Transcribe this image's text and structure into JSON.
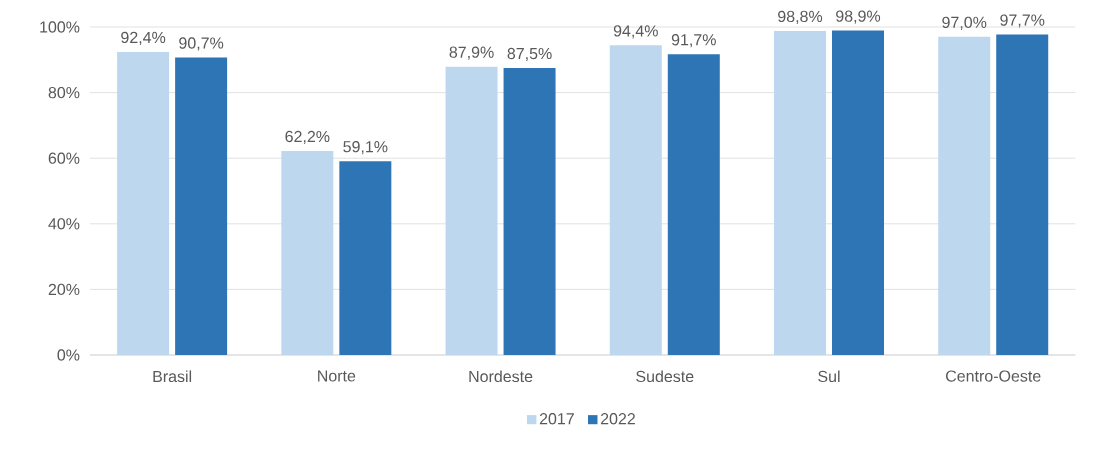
{
  "chart_data": {
    "type": "bar",
    "categories": [
      "Brasil",
      "Norte",
      "Nordeste",
      "Sudeste",
      "Sul",
      "Centro-Oeste"
    ],
    "series": [
      {
        "name": "2017",
        "color": "#bdd7ee",
        "values": [
          92.4,
          62.2,
          87.9,
          94.4,
          98.8,
          97.0
        ],
        "value_labels": [
          "92,4%",
          "62,2%",
          "87,9%",
          "94,4%",
          "98,8%",
          "97,0%"
        ]
      },
      {
        "name": "2022",
        "color": "#2e75b6",
        "values": [
          90.7,
          59.1,
          87.5,
          91.7,
          98.9,
          97.7
        ],
        "value_labels": [
          "90,7%",
          "59,1%",
          "87,5%",
          "91,7%",
          "98,9%",
          "97,7%"
        ]
      }
    ],
    "ylim": [
      0,
      100
    ],
    "yticks": [
      {
        "value": 0,
        "label": "0%"
      },
      {
        "value": 20,
        "label": "20%"
      },
      {
        "value": 40,
        "label": "40%"
      },
      {
        "value": 60,
        "label": "60%"
      },
      {
        "value": 80,
        "label": "80%"
      },
      {
        "value": 100,
        "label": "100%"
      }
    ],
    "grid": "y",
    "legend": "bottom"
  }
}
